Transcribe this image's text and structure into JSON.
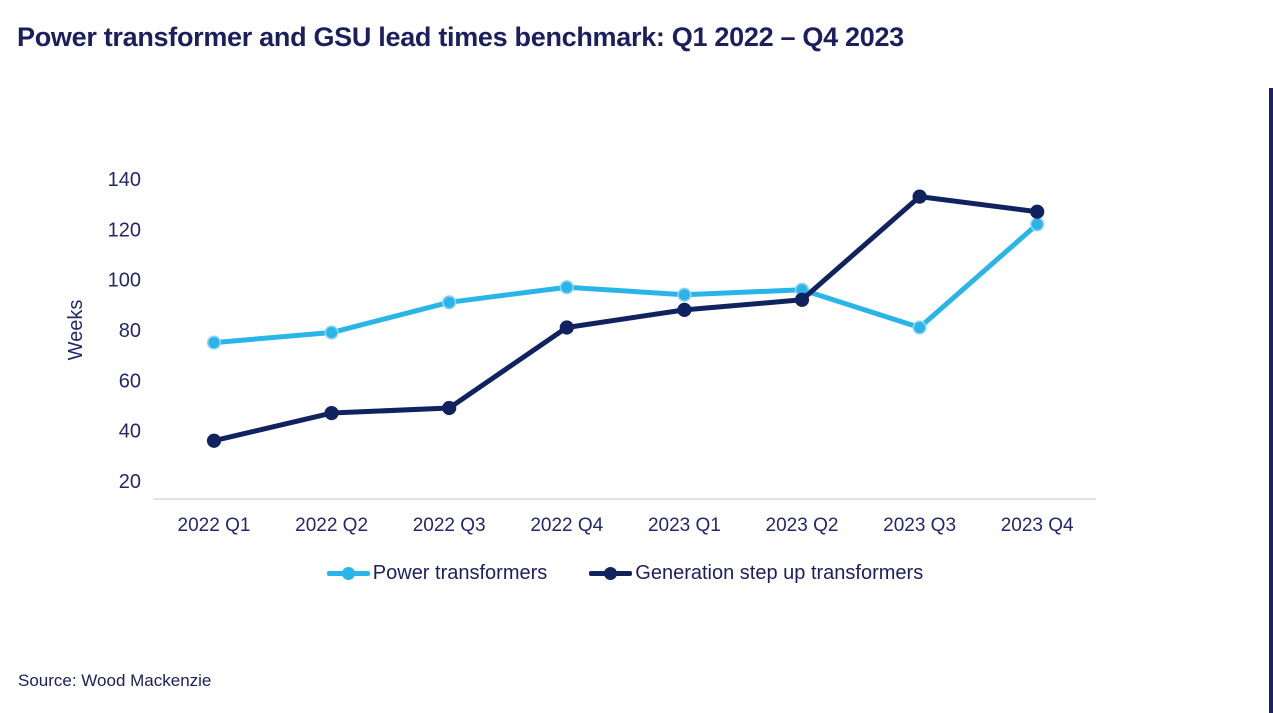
{
  "title": "Power transformer and GSU lead times benchmark: Q1 2022 – Q4 2023",
  "source": "Source: Wood Mackenzie",
  "colors": {
    "text_navy": "#1b1f5e",
    "axis_line": "#d9d9d9",
    "power_transformers_blue": "#29b5e8",
    "gsu_navy": "#11235f"
  },
  "chart_data": {
    "type": "line",
    "title": "Power transformer and GSU lead times benchmark: Q1 2022 – Q4 2023",
    "categories": [
      "2022 Q1",
      "2022 Q2",
      "2022 Q3",
      "2022 Q4",
      "2023 Q1",
      "2023 Q2",
      "2023 Q3",
      "2023 Q4"
    ],
    "series": [
      {
        "name": "Power transformers",
        "color": "#29b5e8",
        "marker_border": "#8fd4f2",
        "values": [
          75,
          79,
          91,
          97,
          94,
          96,
          81,
          122
        ]
      },
      {
        "name": "Generation step up transformers",
        "color": "#11235f",
        "marker_border": "#11235f",
        "values": [
          36,
          47,
          49,
          81,
          88,
          92,
          133,
          127
        ]
      }
    ],
    "xlabel": "",
    "ylabel": "Weeks",
    "ylim": [
      20,
      140
    ],
    "yticks": [
      140,
      120,
      100,
      80,
      60,
      40,
      20
    ],
    "grid": false,
    "legend_position": "bottom"
  }
}
